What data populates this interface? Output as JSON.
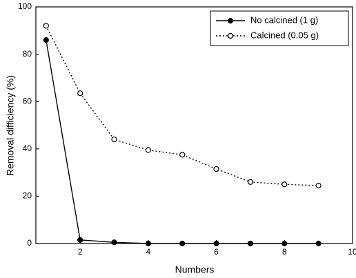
{
  "chart_data": {
    "type": "line",
    "x_label": "Numbers",
    "y_label": "Removal difficiency (%)",
    "x": [
      1,
      2,
      3,
      4,
      5,
      6,
      7,
      8,
      9
    ],
    "series": [
      {
        "name": "No calcined (1 g)",
        "color": "#000000",
        "linestyle": "solid",
        "marker": "filled",
        "values": [
          86,
          1.5,
          0.5,
          0,
          0,
          0,
          0,
          0,
          0
        ]
      },
      {
        "name": "Calcined (0.05 g)",
        "color": "#000000",
        "linestyle": "dotted",
        "marker": "open",
        "values": [
          92,
          63.5,
          44,
          39.5,
          37.5,
          31.5,
          26,
          25,
          24.5
        ]
      }
    ],
    "xlim": [
      0.7,
      10
    ],
    "xticks": [
      2,
      4,
      6,
      8,
      10
    ],
    "ylim": [
      0,
      100
    ],
    "yticks": [
      0,
      20,
      40,
      60,
      80,
      100
    ],
    "legend": "upper right"
  }
}
